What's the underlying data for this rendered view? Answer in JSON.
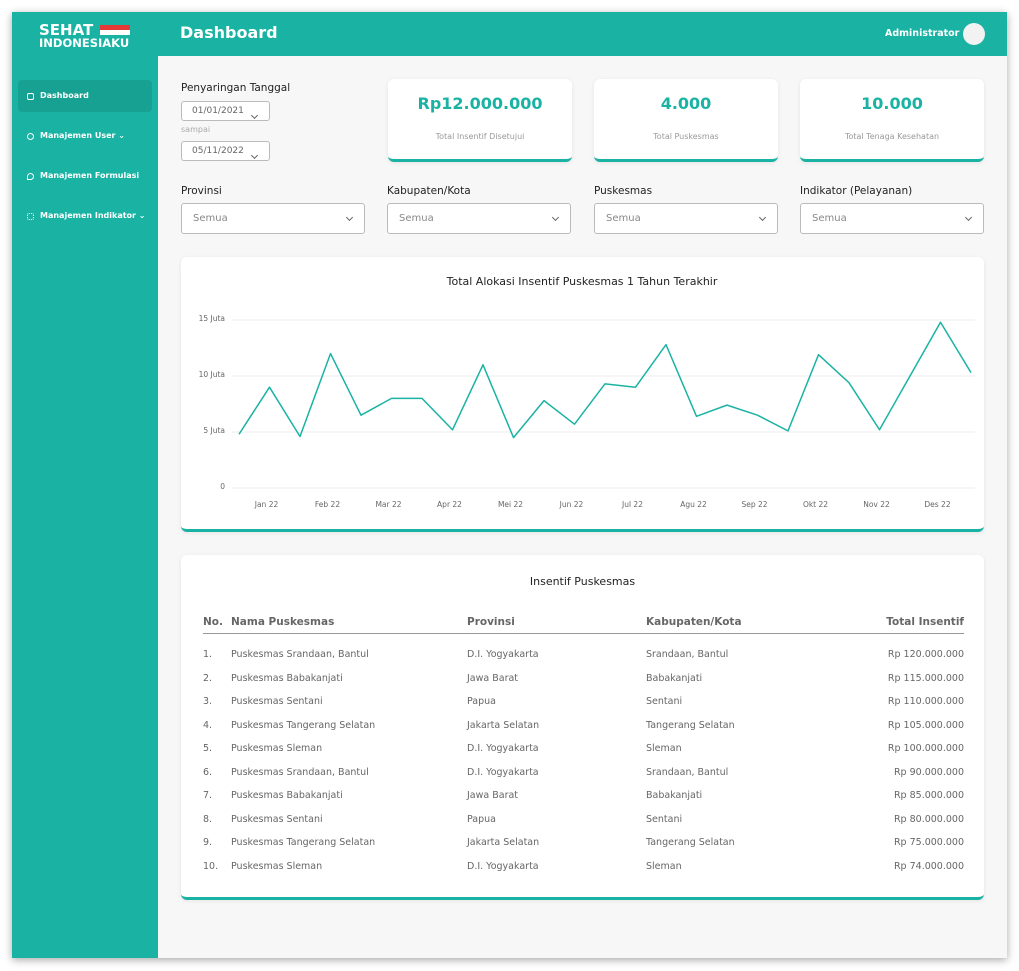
{
  "brand": {
    "line1": "SEHAT",
    "line2": "INDONESIAKU"
  },
  "header": {
    "title": "Dashboard",
    "user": "Administrator"
  },
  "sidebar": {
    "items": [
      "Dashboard",
      "Manajemen User",
      "Manajemen Formulasi",
      "Manajemen Indikator"
    ]
  },
  "date_filter": {
    "label": "Penyaringan Tanggal",
    "from": "01/01/2021",
    "separator": "sampai",
    "to": "05/11/2022"
  },
  "stats": [
    {
      "value": "Rp12.000.000",
      "label": "Total Insentif Disetujui"
    },
    {
      "value": "4.000",
      "label": "Total Puskesmas"
    },
    {
      "value": "10.000",
      "label": "Total Tenaga Kesehatan"
    }
  ],
  "filters": [
    {
      "label": "Provinsi",
      "value": "Semua"
    },
    {
      "label": "Kabupaten/Kota",
      "value": "Semua"
    },
    {
      "label": "Puskesmas",
      "value": "Semua"
    },
    {
      "label": "Indikator (Pelayanan)",
      "value": "Semua"
    }
  ],
  "chart_data": {
    "type": "line",
    "title": "Total Alokasi Insentif Puskesmas 1 Tahun Terakhir",
    "categories": [
      null,
      "Jan 22",
      null,
      "Feb 22",
      null,
      "Mar 22",
      null,
      "Apr 22",
      null,
      "Mei 22",
      null,
      "Jun 22",
      null,
      "Jul 22",
      null,
      "Agu 22",
      null,
      "Sep 22",
      null,
      "Okt 22",
      null,
      "Nov 22",
      null,
      "Des 22",
      null
    ],
    "values": [
      4.8,
      9.0,
      4.6,
      12.0,
      6.5,
      8.0,
      8.0,
      5.2,
      11.0,
      4.5,
      7.8,
      5.7,
      9.3,
      9.0,
      12.8,
      6.4,
      7.4,
      6.5,
      5.1,
      11.9,
      9.4,
      5.2,
      10.0,
      14.8,
      10.3
    ],
    "color": "#1ab3a3",
    "ylim": [
      0,
      15
    ],
    "yticks": [
      0,
      {
        "value": 5,
        "label": "5 Juta"
      },
      {
        "value": 10,
        "label": "10 Juta"
      },
      {
        "value": 15,
        "label": "15 Juta"
      }
    ],
    "grid": true
  },
  "table": {
    "title": "Insentif Puskesmas",
    "header": [
      "No.",
      "Nama Puskesmas",
      "Provinsi",
      "Kabupaten/Kota",
      "Total Insentif"
    ],
    "rows": [
      [
        "1.",
        "Puskesmas Srandaan, Bantul",
        "D.I. Yogyakarta",
        "Srandaan, Bantul",
        "Rp 120.000.000"
      ],
      [
        "2.",
        "Puskesmas Babakanjati",
        "Jawa Barat",
        "Babakanjati",
        "Rp 115.000.000"
      ],
      [
        "3.",
        "Puskesmas Sentani",
        "Papua",
        "Sentani",
        "Rp 110.000.000"
      ],
      [
        "4.",
        "Puskesmas Tangerang Selatan",
        "Jakarta Selatan",
        "Tangerang Selatan",
        "Rp 105.000.000"
      ],
      [
        "5.",
        "Puskesmas Sleman",
        "D.I. Yogyakarta",
        "Sleman",
        "Rp 100.000.000"
      ],
      [
        "6.",
        "Puskesmas Srandaan, Bantul",
        "D.I. Yogyakarta",
        "Srandaan, Bantul",
        "Rp 90.000.000"
      ],
      [
        "7.",
        "Puskesmas Babakanjati",
        "Jawa Barat",
        "Babakanjati",
        "Rp 85.000.000"
      ],
      [
        "8.",
        "Puskesmas Sentani",
        "Papua",
        "Sentani",
        "Rp 80.000.000"
      ],
      [
        "9.",
        "Puskesmas Tangerang Selatan",
        "Jakarta Selatan",
        "Tangerang Selatan",
        "Rp 75.000.000"
      ],
      [
        "10.",
        "Puskesmas Sleman",
        "D.I. Yogyakarta",
        "Sleman",
        "Rp 74.000.000"
      ]
    ]
  }
}
